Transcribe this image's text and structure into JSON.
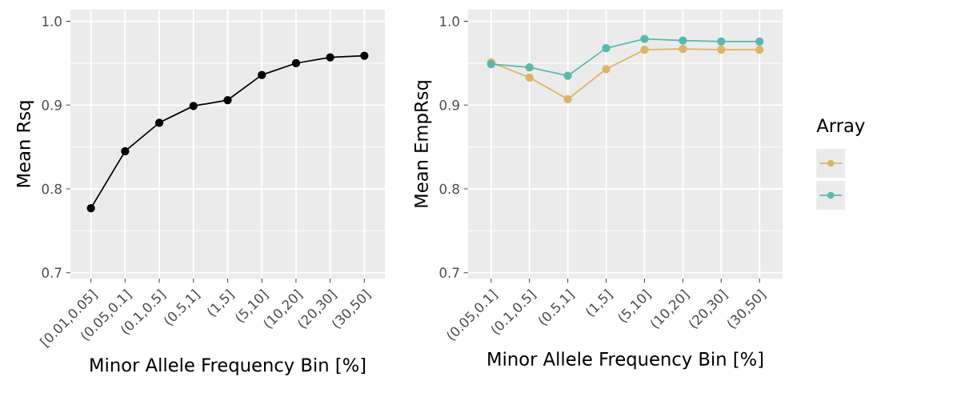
{
  "chart_data": [
    {
      "type": "line",
      "ylabel": "Mean Rsq",
      "xlabel": "Minor Allele Frequency Bin [%]",
      "categories": [
        "[0.01,0.05]",
        "(0.05,0.1]",
        "(0.1,0.5]",
        "(0.5,1]",
        "(1,5]",
        "(5,10]",
        "(10,20]",
        "(20,30]",
        "(30,50]"
      ],
      "series": [
        {
          "color": "#000000",
          "values": [
            0.777,
            0.845,
            0.879,
            0.899,
            0.906,
            0.936,
            0.95,
            0.957,
            0.959
          ]
        }
      ],
      "ylim": [
        0.693,
        1.014
      ],
      "yticks": [
        0.7,
        0.8,
        0.9,
        {
          "value": 1.0,
          "label": "1.0"
        }
      ],
      "grid": true,
      "marker": "circle"
    },
    {
      "type": "line",
      "ylabel": "Mean EmpRsq",
      "xlabel": "Minor Allele Frequency Bin [%]",
      "legend_title": "Array",
      "categories": [
        "(0.05,0.1]",
        "(0.1,0.5]",
        "(0.5,1]",
        "(1,5]",
        "(5,10]",
        "(10,20]",
        "(20,30]",
        "(30,50]"
      ],
      "series": [
        {
          "color": "#DDB467",
          "values": [
            0.951,
            0.933,
            0.907,
            0.943,
            0.966,
            0.967,
            0.966,
            0.966
          ]
        },
        {
          "color": "#5BB8AC",
          "values": [
            0.949,
            0.945,
            0.935,
            0.968,
            0.979,
            0.977,
            0.976,
            0.976
          ]
        }
      ],
      "ylim": [
        0.693,
        1.014
      ],
      "yticks": [
        0.7,
        0.8,
        0.9,
        {
          "value": 1.0,
          "label": "1.0"
        }
      ],
      "grid": true,
      "marker": "circle"
    }
  ]
}
